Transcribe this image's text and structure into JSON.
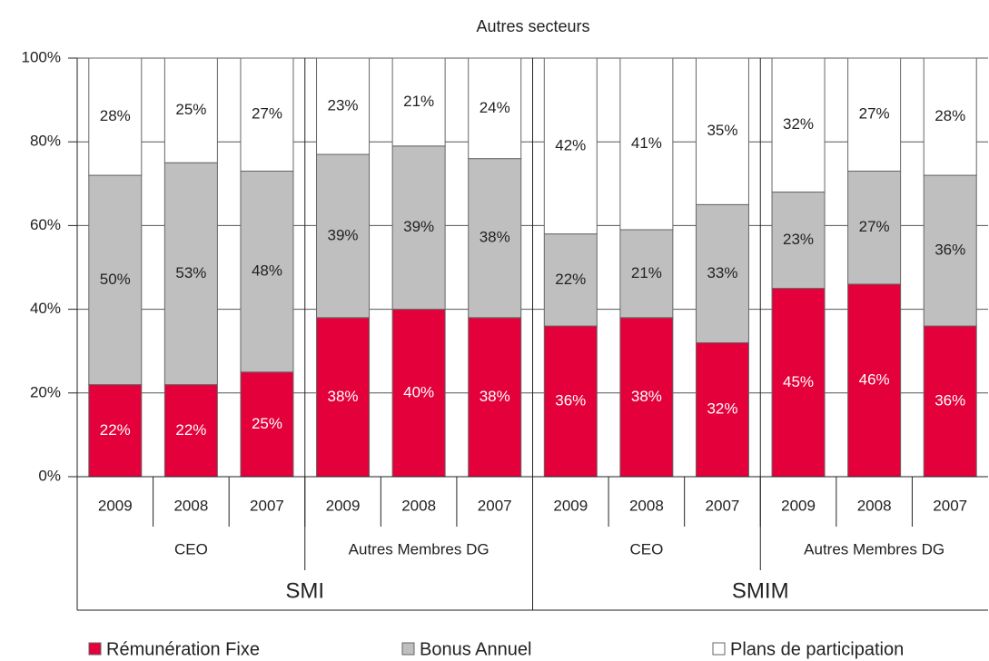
{
  "chart_data": {
    "type": "stacked_bar",
    "title": "Autres secteurs",
    "categories": [
      "2009",
      "2008",
      "2007",
      "2009",
      "2008",
      "2007",
      "2009",
      "2008",
      "2007",
      "2009",
      "2008",
      "2007"
    ],
    "groups": [
      "CEO",
      "Autres Membres DG",
      "CEO",
      "Autres Membres DG"
    ],
    "supergroups": [
      "SMI",
      "SMIM"
    ],
    "series": [
      {
        "name": "Rémunération Fixe",
        "color": "#e4003a",
        "label_color": "#ffffff",
        "values": [
          22,
          22,
          25,
          38,
          40,
          38,
          36,
          38,
          32,
          45,
          46,
          36
        ],
        "value_labels": [
          "22%",
          "22%",
          "25%",
          "38%",
          "40%",
          "38%",
          "36%",
          "38%",
          "32%",
          "45%",
          "46%",
          "36%"
        ]
      },
      {
        "name": "Bonus Annuel",
        "color": "#bfbfbf",
        "label_color": "#222222",
        "values": [
          50,
          53,
          48,
          39,
          39,
          38,
          22,
          21,
          33,
          23,
          27,
          36
        ],
        "value_labels": [
          "50%",
          "53%",
          "48%",
          "39%",
          "39%",
          "38%",
          "22%",
          "21%",
          "33%",
          "23%",
          "27%",
          "36%"
        ]
      },
      {
        "name": "Plans de participation",
        "color": "#ffffff",
        "label_color": "#222222",
        "values": [
          28,
          25,
          27,
          23,
          21,
          24,
          42,
          41,
          35,
          32,
          27,
          28
        ],
        "value_labels": [
          "28%",
          "25%",
          "27%",
          "23%",
          "21%",
          "24%",
          "42%",
          "41%",
          "35%",
          "32%",
          "27%",
          "28%"
        ]
      }
    ],
    "ylim": [
      0,
      100
    ],
    "yticks": [
      {
        "value": 0,
        "label": "0%"
      },
      {
        "value": 20,
        "label": "20%"
      },
      {
        "value": 40,
        "label": "40%"
      },
      {
        "value": 60,
        "label": "60%"
      },
      {
        "value": 80,
        "label": "80%"
      },
      {
        "value": 100,
        "label": "100%"
      }
    ],
    "grid": true
  }
}
